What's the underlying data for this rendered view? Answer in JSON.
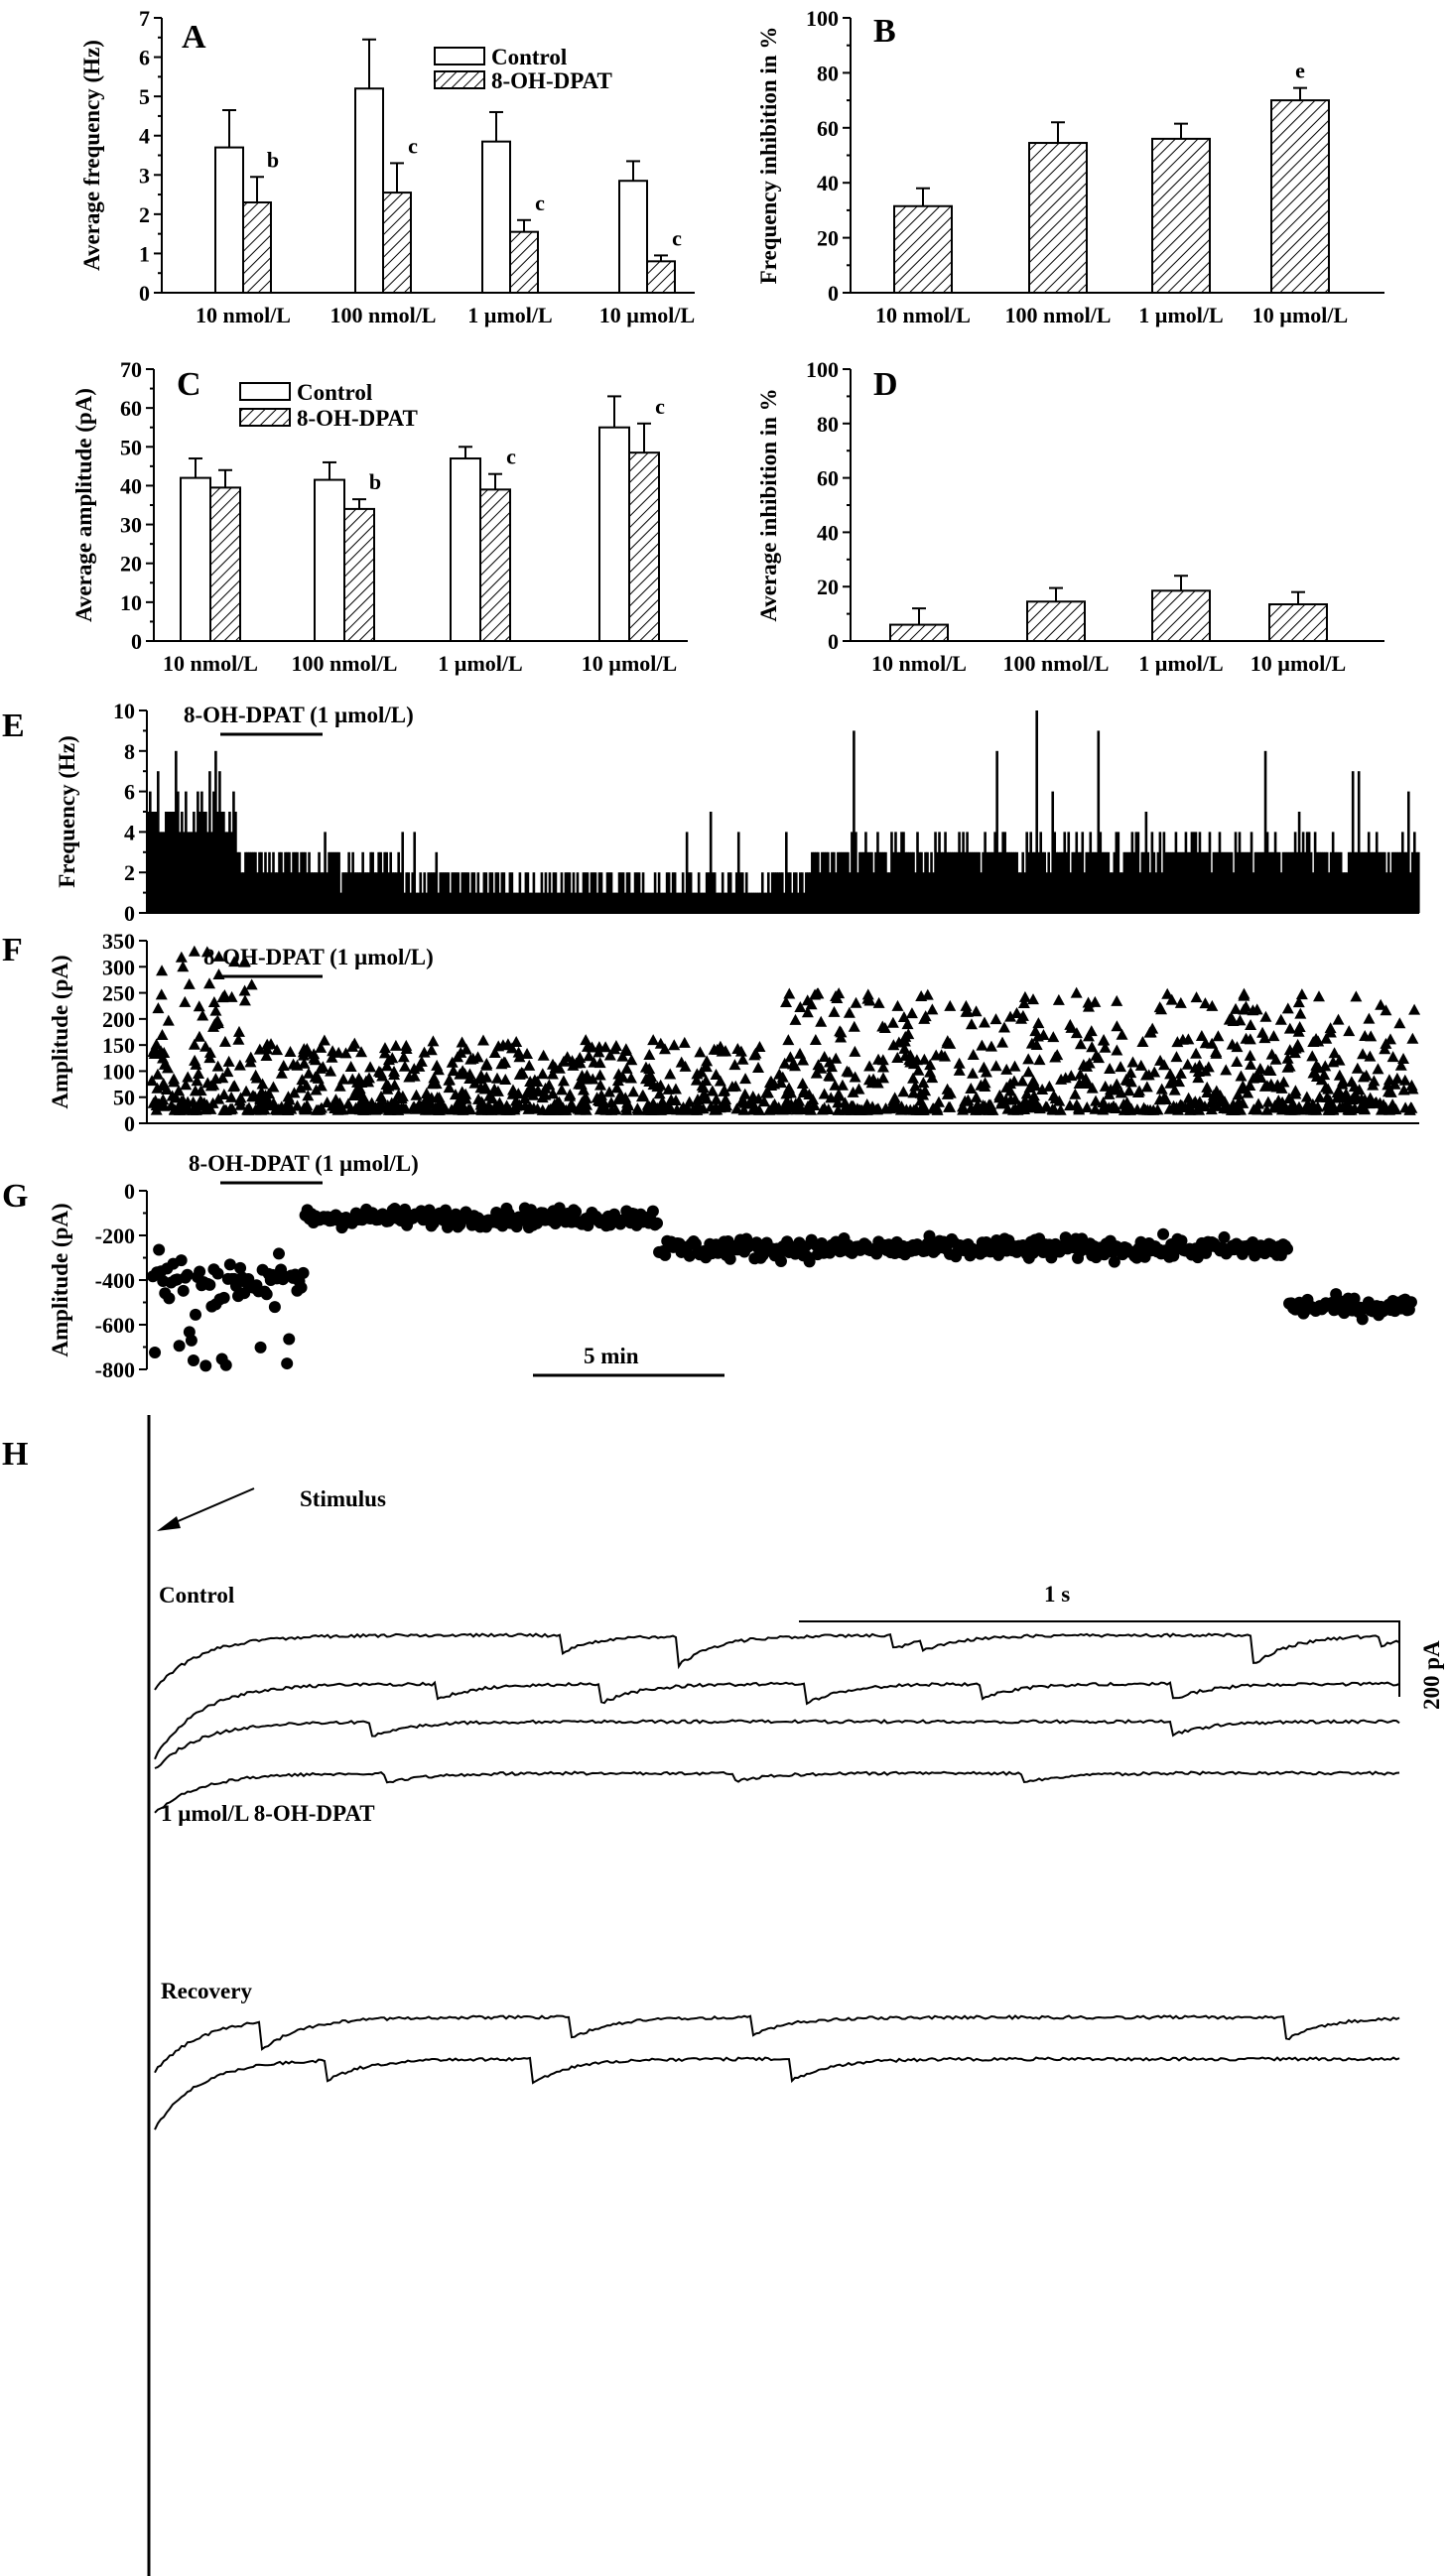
{
  "chart_data": [
    {
      "panel": "A",
      "type": "bar",
      "categories": [
        "10 nmol/L",
        "100 nmol/L",
        "1 µmol/L",
        "10 µmol/L"
      ],
      "ylabel": "Average frequency (Hz)",
      "ylim": [
        0,
        7
      ],
      "yticks": [
        "0",
        "1",
        "2",
        "3",
        "4",
        "5",
        "6",
        "7"
      ],
      "series": [
        {
          "name": "Control",
          "values": [
            3.7,
            5.2,
            3.85,
            2.85
          ],
          "errors": [
            0.95,
            1.25,
            0.75,
            0.5
          ]
        },
        {
          "name": "8-OH-DPAT",
          "values": [
            2.3,
            2.55,
            1.55,
            0.8
          ],
          "errors": [
            0.65,
            0.75,
            0.3,
            0.15
          ]
        }
      ],
      "significance": [
        "b",
        "c",
        "c",
        "c"
      ],
      "legend": "top-center"
    },
    {
      "panel": "B",
      "type": "bar",
      "categories": [
        "10 nmol/L",
        "100 nmol/L",
        "1 µmol/L",
        "10 µmol/L"
      ],
      "ylabel": "Frequency inhibition in %",
      "ylim": [
        0,
        100
      ],
      "yticks": [
        "0",
        "20",
        "40",
        "60",
        "80",
        "100"
      ],
      "series": [
        {
          "name": "",
          "values": [
            31.5,
            54.5,
            56,
            70
          ],
          "errors": [
            6.5,
            7.5,
            5.5,
            4.5
          ]
        }
      ],
      "significance": [
        "",
        "",
        "",
        "e"
      ]
    },
    {
      "panel": "C",
      "type": "bar",
      "categories": [
        "10 nmol/L",
        "100 nmol/L",
        "1 µmol/L",
        "10 µmol/L"
      ],
      "ylabel": "Average amplitude (pA)",
      "ylim": [
        0,
        70
      ],
      "yticks": [
        "0",
        "10",
        "20",
        "30",
        "40",
        "50",
        "60",
        "70"
      ],
      "series": [
        {
          "name": "Control",
          "values": [
            42,
            41.5,
            47,
            55
          ],
          "errors": [
            5,
            4.5,
            3,
            8
          ]
        },
        {
          "name": "8-OH-DPAT",
          "values": [
            39.5,
            34,
            39,
            48.5
          ],
          "errors": [
            4.5,
            2.5,
            4,
            7.5
          ]
        }
      ],
      "significance": [
        "",
        "b",
        "c",
        "c"
      ],
      "legend": "top-left"
    },
    {
      "panel": "D",
      "type": "bar",
      "categories": [
        "10 nmol/L",
        "100 nmol/L",
        "1 µmol/L",
        "10 µmol/L"
      ],
      "ylabel": "Average inhibition in %",
      "ylim": [
        0,
        100
      ],
      "yticks": [
        "0",
        "20",
        "40",
        "60",
        "80",
        "100"
      ],
      "series": [
        {
          "name": "",
          "values": [
            6,
            14.5,
            18.5,
            13.5
          ],
          "errors": [
            6,
            5,
            5.5,
            4.5
          ]
        }
      ]
    },
    {
      "panel": "E",
      "type": "bar",
      "ylabel": "Frequency (Hz)",
      "ylim": [
        0,
        10
      ],
      "yticks": [
        "0",
        "2",
        "4",
        "6",
        "8",
        "10"
      ],
      "annotation": "8-OH-DPAT (1 µmol/L)",
      "segments_approx": [
        {
          "t": [
            0,
            0.07
          ],
          "mean": 5,
          "max": 9
        },
        {
          "t": [
            0.07,
            0.2
          ],
          "mean": 2.5,
          "max": 6
        },
        {
          "t": [
            0.2,
            0.52
          ],
          "mean": 1.5,
          "max": 5
        },
        {
          "t": [
            0.52,
            1.0
          ],
          "mean": 3,
          "max": 10
        }
      ]
    },
    {
      "panel": "F",
      "type": "scatter",
      "ylabel": "Amplitude (pA)",
      "ylim": [
        0,
        350
      ],
      "yticks": [
        "0",
        "50",
        "100",
        "150",
        "200",
        "250",
        "300",
        "350"
      ],
      "annotation": "8-OH-DPAT (1 µmol/L)",
      "marker": "triangle",
      "segments_approx": [
        {
          "t": [
            0,
            0.08
          ],
          "low": 25,
          "high": 330
        },
        {
          "t": [
            0.08,
            0.5
          ],
          "low": 25,
          "high": 160
        },
        {
          "t": [
            0.5,
            1.0
          ],
          "low": 25,
          "high": 250
        }
      ]
    },
    {
      "panel": "G",
      "type": "scatter",
      "ylabel": "Amplitude (pA)",
      "ylim": [
        -800,
        0
      ],
      "yticks": [
        "0",
        "-200",
        "-400",
        "-600",
        "-800"
      ],
      "annotation": "8-OH-DPAT (1 µmol/L)",
      "scalebar": "5 min",
      "marker": "circle",
      "segments_approx": [
        {
          "t": [
            0,
            0.12
          ],
          "mean": -400,
          "spread": 160
        },
        {
          "t": [
            0.12,
            0.4
          ],
          "mean": -120,
          "spread": 70
        },
        {
          "t": [
            0.4,
            0.9
          ],
          "mean": -260,
          "spread": 80
        },
        {
          "t": [
            0.9,
            1.0
          ],
          "mean": -520,
          "spread": 70
        }
      ]
    },
    {
      "panel": "H",
      "type": "line",
      "description_labels": [
        "Stimulus",
        "Control",
        "1 µmol/L 8-OH-DPAT",
        "Recovery"
      ],
      "scalebar_time": "1 s",
      "scalebar_current": "200 pA"
    }
  ],
  "panel_letters": {
    "A": "A",
    "B": "B",
    "C": "C",
    "D": "D",
    "E": "E",
    "F": "F",
    "G": "G",
    "H": "H"
  },
  "labels": {
    "legend_control": "Control",
    "legend_drug": "8-OH-DPAT",
    "drug_bar": "8-OH-DPAT (1 µmol/L)",
    "five_min": "5 min",
    "stimulus": "Stimulus",
    "control_trace": "Control",
    "drug_trace": "1 µmol/L 8-OH-DPAT",
    "recovery_trace": "Recovery",
    "one_s": "1 s",
    "two_hundred_pa": "200 pA"
  },
  "colors": {
    "ink": "#000000",
    "paper": "#ffffff"
  }
}
